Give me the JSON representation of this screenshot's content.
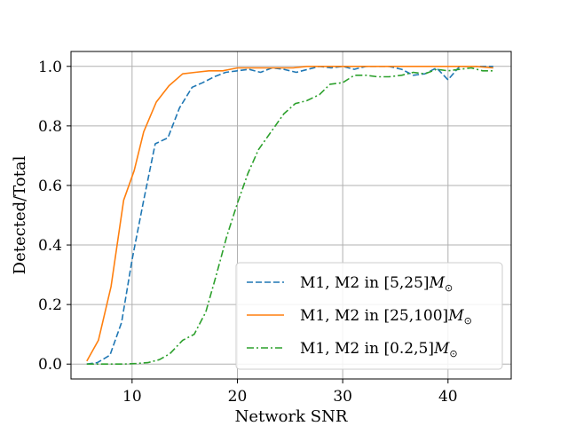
{
  "chart_data": {
    "type": "line",
    "title": "",
    "xlabel": "Network SNR",
    "ylabel": "Detected/Total",
    "xlim": [
      4.2,
      46.0
    ],
    "ylim": [
      -0.05,
      1.05
    ],
    "xticks": [
      10,
      20,
      30,
      40
    ],
    "xtick_labels": [
      "10",
      "20",
      "30",
      "40"
    ],
    "yticks": [
      0.0,
      0.2,
      0.4,
      0.6,
      0.8,
      1.0
    ],
    "ytick_labels": [
      "0.0",
      "0.2",
      "0.4",
      "0.6",
      "0.8",
      "1.0"
    ],
    "grid": true,
    "legend_position": "bottom-right",
    "series": [
      {
        "name": "M1, M2 in [5,25]",
        "legend_prefix": "M1, M2 in [5,25]",
        "legend_mass": "M",
        "legend_sub": "⊙",
        "color": "#1f77b4",
        "style": "dashed",
        "x": [
          5.7,
          6.7,
          7.9,
          9.0,
          10.0,
          11.1,
          12.2,
          13.4,
          14.5,
          15.7,
          16.7,
          17.8,
          18.9,
          20.0,
          21.1,
          22.2,
          23.3,
          24.4,
          25.6,
          26.7,
          27.8,
          28.9,
          30.0,
          31.1,
          32.2,
          33.3,
          34.4,
          35.6,
          36.7,
          37.8,
          38.9,
          40.0,
          41.1,
          42.2,
          43.3,
          44.3
        ],
        "y": [
          0.0,
          0.005,
          0.03,
          0.14,
          0.35,
          0.55,
          0.74,
          0.76,
          0.86,
          0.93,
          0.945,
          0.965,
          0.98,
          0.985,
          0.99,
          0.98,
          0.995,
          0.99,
          0.98,
          0.99,
          1.0,
          0.995,
          1.0,
          0.99,
          1.0,
          1.0,
          1.0,
          0.99,
          0.97,
          0.975,
          0.995,
          0.955,
          1.0,
          1.0,
          1.0,
          1.0
        ]
      },
      {
        "name": "M1, M2 in [25,100]",
        "legend_prefix": "M1, M2 in [25,100]",
        "legend_mass": "M",
        "legend_sub": "⊙",
        "color": "#ff7f0e",
        "style": "solid",
        "x": [
          5.7,
          6.8,
          8.0,
          9.2,
          10.2,
          11.1,
          12.3,
          13.5,
          14.8,
          16.0,
          17.3,
          18.6,
          20.0,
          21.3,
          22.6,
          24.0,
          25.3,
          26.6,
          28.0,
          29.3,
          30.6,
          32.0,
          33.3,
          34.6,
          36.0,
          37.3,
          38.6,
          40.0,
          41.3,
          42.6,
          44.3
        ],
        "y": [
          0.01,
          0.08,
          0.26,
          0.55,
          0.65,
          0.78,
          0.88,
          0.935,
          0.975,
          0.98,
          0.985,
          0.985,
          0.995,
          0.995,
          0.995,
          0.995,
          0.995,
          1.0,
          1.0,
          1.0,
          1.0,
          1.0,
          1.0,
          1.0,
          1.0,
          1.0,
          1.0,
          1.0,
          1.0,
          1.0,
          0.995
        ]
      },
      {
        "name": "M1, M2 in [0.2,5]",
        "legend_prefix": "M1, M2 in [0.2,5]",
        "legend_mass": "M",
        "legend_sub": "⊙",
        "color": "#2ca02c",
        "style": "dashdot",
        "x": [
          5.7,
          6.8,
          8.0,
          9.2,
          10.4,
          11.5,
          12.6,
          13.6,
          14.8,
          15.9,
          17.0,
          18.0,
          19.0,
          20.0,
          21.0,
          22.0,
          23.3,
          24.4,
          25.5,
          26.6,
          27.8,
          28.8,
          30.0,
          31.1,
          32.2,
          33.3,
          34.4,
          35.6,
          36.7,
          37.8,
          38.9,
          40.0,
          41.1,
          42.2,
          43.3,
          44.3
        ],
        "y": [
          0.0,
          0.0,
          0.0,
          0.0,
          0.002,
          0.005,
          0.015,
          0.035,
          0.08,
          0.1,
          0.175,
          0.3,
          0.43,
          0.54,
          0.64,
          0.72,
          0.785,
          0.84,
          0.875,
          0.885,
          0.905,
          0.94,
          0.945,
          0.97,
          0.97,
          0.965,
          0.965,
          0.97,
          0.98,
          0.975,
          0.99,
          0.985,
          0.99,
          0.995,
          0.985,
          0.985
        ]
      }
    ]
  }
}
